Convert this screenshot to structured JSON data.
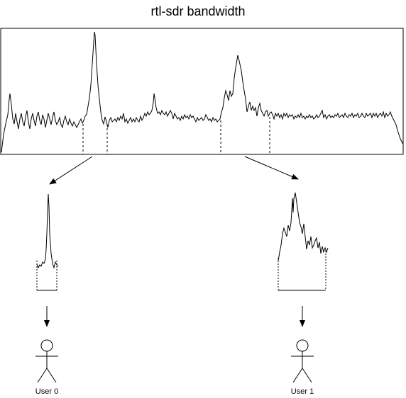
{
  "diagram": {
    "title": "rtl-sdr bandwidth",
    "users": [
      {
        "label": "User 0"
      },
      {
        "label": "User 1"
      }
    ]
  },
  "colors": {
    "stroke": "#000000",
    "background": "#ffffff"
  }
}
